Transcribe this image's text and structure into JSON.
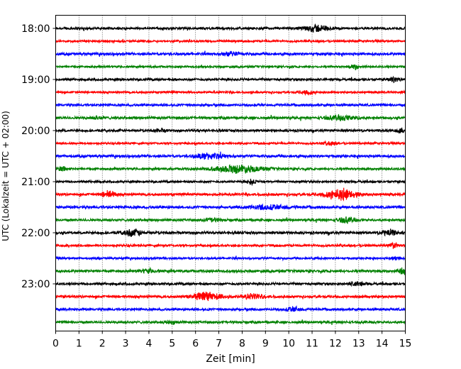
{
  "chart_data": {
    "type": "line",
    "title": "",
    "xlabel": "Zeit  [min]",
    "ylabel": "UTC (Lokalzeit = UTC + 02:00)",
    "xlim": [
      0,
      15
    ],
    "x_ticks": [
      "0",
      "1",
      "2",
      "3",
      "4",
      "5",
      "6",
      "7",
      "8",
      "9",
      "10",
      "11",
      "12",
      "13",
      "14",
      "15"
    ],
    "y_ticks": [
      "18:00",
      "19:00",
      "20:00",
      "21:00",
      "22:00",
      "23:00"
    ],
    "trace_interval_min": 15,
    "first_trace": "18:00",
    "grid": "vertical dotted at each minute",
    "colors_cycle": [
      "#000000",
      "#ff0000",
      "#0000ff",
      "#008000"
    ],
    "traces": [
      {
        "start": "18:00",
        "color": "#000000",
        "amp": 0.045,
        "events": [
          {
            "t": 11.2,
            "a": 0.13,
            "w": 0.5
          }
        ]
      },
      {
        "start": "18:15",
        "color": "#ff0000",
        "amp": 0.04,
        "events": []
      },
      {
        "start": "18:30",
        "color": "#0000ff",
        "amp": 0.05,
        "events": [
          {
            "t": 7.5,
            "a": 0.06,
            "w": 0.4
          }
        ]
      },
      {
        "start": "18:45",
        "color": "#008000",
        "amp": 0.04,
        "events": [
          {
            "t": 12.8,
            "a": 0.12,
            "w": 0.15
          }
        ]
      },
      {
        "start": "19:00",
        "color": "#000000",
        "amp": 0.045,
        "events": [
          {
            "t": 14.5,
            "a": 0.08,
            "w": 0.2
          }
        ]
      },
      {
        "start": "19:15",
        "color": "#ff0000",
        "amp": 0.04,
        "events": [
          {
            "t": 10.8,
            "a": 0.07,
            "w": 0.3
          }
        ]
      },
      {
        "start": "19:30",
        "color": "#0000ff",
        "amp": 0.045,
        "events": []
      },
      {
        "start": "19:45",
        "color": "#008000",
        "amp": 0.05,
        "events": [
          {
            "t": 12.3,
            "a": 0.09,
            "w": 0.6
          },
          {
            "t": 1.8,
            "a": 0.06,
            "w": 0.3
          }
        ]
      },
      {
        "start": "20:00",
        "color": "#000000",
        "amp": 0.045,
        "events": [
          {
            "t": 4.5,
            "a": 0.07,
            "w": 0.2
          },
          {
            "t": 14.8,
            "a": 0.07,
            "w": 0.2
          }
        ]
      },
      {
        "start": "20:15",
        "color": "#ff0000",
        "amp": 0.04,
        "events": [
          {
            "t": 11.8,
            "a": 0.06,
            "w": 0.3
          }
        ]
      },
      {
        "start": "20:30",
        "color": "#0000ff",
        "amp": 0.05,
        "events": [
          {
            "t": 6.6,
            "a": 0.1,
            "w": 0.6
          }
        ]
      },
      {
        "start": "20:45",
        "color": "#008000",
        "amp": 0.045,
        "events": [
          {
            "t": 7.8,
            "a": 0.14,
            "w": 1.0
          },
          {
            "t": 0.3,
            "a": 0.1,
            "w": 0.15
          }
        ]
      },
      {
        "start": "21:00",
        "color": "#000000",
        "amp": 0.04,
        "events": [
          {
            "t": 8.4,
            "a": 0.1,
            "w": 0.2
          }
        ]
      },
      {
        "start": "21:15",
        "color": "#ff0000",
        "amp": 0.05,
        "events": [
          {
            "t": 12.2,
            "a": 0.22,
            "w": 0.6
          },
          {
            "t": 2.3,
            "a": 0.12,
            "w": 0.3
          }
        ]
      },
      {
        "start": "21:30",
        "color": "#0000ff",
        "amp": 0.05,
        "events": [
          {
            "t": 9.2,
            "a": 0.08,
            "w": 0.8
          }
        ]
      },
      {
        "start": "21:45",
        "color": "#008000",
        "amp": 0.045,
        "events": [
          {
            "t": 12.5,
            "a": 0.09,
            "w": 0.4
          },
          {
            "t": 6.7,
            "a": 0.07,
            "w": 0.3
          }
        ]
      },
      {
        "start": "22:00",
        "color": "#000000",
        "amp": 0.05,
        "events": [
          {
            "t": 3.3,
            "a": 0.12,
            "w": 0.4
          },
          {
            "t": 14.3,
            "a": 0.1,
            "w": 0.3
          }
        ]
      },
      {
        "start": "22:15",
        "color": "#ff0000",
        "amp": 0.045,
        "events": [
          {
            "t": 14.5,
            "a": 0.09,
            "w": 0.2
          }
        ]
      },
      {
        "start": "22:30",
        "color": "#0000ff",
        "amp": 0.04,
        "events": [
          {
            "t": 14.6,
            "a": 0.07,
            "w": 0.2
          }
        ]
      },
      {
        "start": "22:45",
        "color": "#008000",
        "amp": 0.05,
        "events": [
          {
            "t": 14.9,
            "a": 0.12,
            "w": 0.2
          },
          {
            "t": 4,
            "a": 0.06,
            "w": 0.3
          }
        ]
      },
      {
        "start": "23:00",
        "color": "#000000",
        "amp": 0.045,
        "events": [
          {
            "t": 12.9,
            "a": 0.07,
            "w": 0.4
          }
        ]
      },
      {
        "start": "23:15",
        "color": "#ff0000",
        "amp": 0.05,
        "events": [
          {
            "t": 6.5,
            "a": 0.16,
            "w": 0.6
          },
          {
            "t": 8.5,
            "a": 0.1,
            "w": 0.4
          }
        ]
      },
      {
        "start": "23:30",
        "color": "#0000ff",
        "amp": 0.045,
        "events": [
          {
            "t": 10.2,
            "a": 0.09,
            "w": 0.3
          }
        ]
      },
      {
        "start": "23:45",
        "color": "#008000",
        "amp": 0.045,
        "events": [
          {
            "t": 5,
            "a": 0.06,
            "w": 0.3
          }
        ]
      }
    ]
  }
}
